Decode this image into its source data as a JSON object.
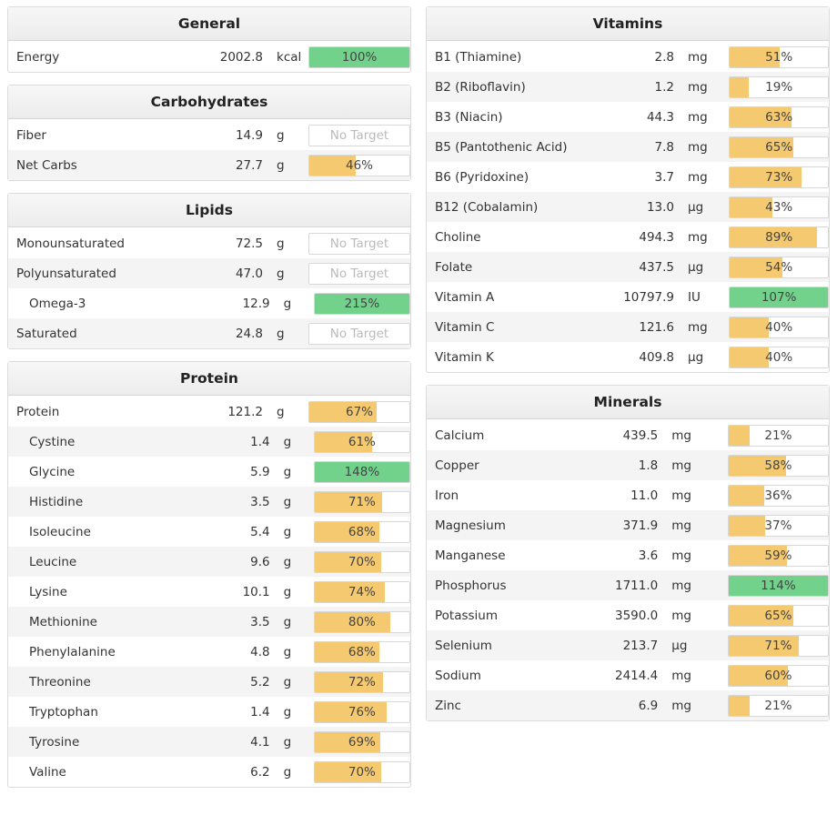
{
  "colors": {
    "yellow": "#f5c96f",
    "green": "#72d28c"
  },
  "general": {
    "title": "General",
    "rows": [
      {
        "name": "Energy",
        "amount": "2002.8",
        "unit": "kcal",
        "label": "100%",
        "pct": 100,
        "color": "green",
        "sub": false
      }
    ]
  },
  "carbohydrates": {
    "title": "Carbohydrates",
    "rows": [
      {
        "name": "Fiber",
        "amount": "14.9",
        "unit": "g",
        "label": "No Target",
        "pct": 0,
        "color": "none",
        "sub": false
      },
      {
        "name": "Net Carbs",
        "amount": "27.7",
        "unit": "g",
        "label": "46%",
        "pct": 46,
        "color": "yellow",
        "sub": false
      }
    ]
  },
  "lipids": {
    "title": "Lipids",
    "rows": [
      {
        "name": "Monounsaturated",
        "amount": "72.5",
        "unit": "g",
        "label": "No Target",
        "pct": 0,
        "color": "none",
        "sub": false
      },
      {
        "name": "Polyunsaturated",
        "amount": "47.0",
        "unit": "g",
        "label": "No Target",
        "pct": 0,
        "color": "none",
        "sub": false
      },
      {
        "name": "Omega-3",
        "amount": "12.9",
        "unit": "g",
        "label": "215%",
        "pct": 215,
        "color": "green",
        "sub": true
      },
      {
        "name": "Saturated",
        "amount": "24.8",
        "unit": "g",
        "label": "No Target",
        "pct": 0,
        "color": "none",
        "sub": false
      }
    ]
  },
  "protein": {
    "title": "Protein",
    "rows": [
      {
        "name": "Protein",
        "amount": "121.2",
        "unit": "g",
        "label": "67%",
        "pct": 67,
        "color": "yellow",
        "sub": false
      },
      {
        "name": "Cystine",
        "amount": "1.4",
        "unit": "g",
        "label": "61%",
        "pct": 61,
        "color": "yellow",
        "sub": true
      },
      {
        "name": "Glycine",
        "amount": "5.9",
        "unit": "g",
        "label": "148%",
        "pct": 148,
        "color": "green",
        "sub": true
      },
      {
        "name": "Histidine",
        "amount": "3.5",
        "unit": "g",
        "label": "71%",
        "pct": 71,
        "color": "yellow",
        "sub": true
      },
      {
        "name": "Isoleucine",
        "amount": "5.4",
        "unit": "g",
        "label": "68%",
        "pct": 68,
        "color": "yellow",
        "sub": true
      },
      {
        "name": "Leucine",
        "amount": "9.6",
        "unit": "g",
        "label": "70%",
        "pct": 70,
        "color": "yellow",
        "sub": true
      },
      {
        "name": "Lysine",
        "amount": "10.1",
        "unit": "g",
        "label": "74%",
        "pct": 74,
        "color": "yellow",
        "sub": true
      },
      {
        "name": "Methionine",
        "amount": "3.5",
        "unit": "g",
        "label": "80%",
        "pct": 80,
        "color": "yellow",
        "sub": true
      },
      {
        "name": "Phenylalanine",
        "amount": "4.8",
        "unit": "g",
        "label": "68%",
        "pct": 68,
        "color": "yellow",
        "sub": true
      },
      {
        "name": "Threonine",
        "amount": "5.2",
        "unit": "g",
        "label": "72%",
        "pct": 72,
        "color": "yellow",
        "sub": true
      },
      {
        "name": "Tryptophan",
        "amount": "1.4",
        "unit": "g",
        "label": "76%",
        "pct": 76,
        "color": "yellow",
        "sub": true
      },
      {
        "name": "Tyrosine",
        "amount": "4.1",
        "unit": "g",
        "label": "69%",
        "pct": 69,
        "color": "yellow",
        "sub": true
      },
      {
        "name": "Valine",
        "amount": "6.2",
        "unit": "g",
        "label": "70%",
        "pct": 70,
        "color": "yellow",
        "sub": true
      }
    ]
  },
  "vitamins": {
    "title": "Vitamins",
    "rows": [
      {
        "name": "B1 (Thiamine)",
        "amount": "2.8",
        "unit": "mg",
        "label": "51%",
        "pct": 51,
        "color": "yellow",
        "sub": false
      },
      {
        "name": "B2 (Riboflavin)",
        "amount": "1.2",
        "unit": "mg",
        "label": "19%",
        "pct": 19,
        "color": "yellow",
        "sub": false
      },
      {
        "name": "B3 (Niacin)",
        "amount": "44.3",
        "unit": "mg",
        "label": "63%",
        "pct": 63,
        "color": "yellow",
        "sub": false
      },
      {
        "name": "B5 (Pantothenic Acid)",
        "amount": "7.8",
        "unit": "mg",
        "label": "65%",
        "pct": 65,
        "color": "yellow",
        "sub": false
      },
      {
        "name": "B6 (Pyridoxine)",
        "amount": "3.7",
        "unit": "mg",
        "label": "73%",
        "pct": 73,
        "color": "yellow",
        "sub": false
      },
      {
        "name": "B12 (Cobalamin)",
        "amount": "13.0",
        "unit": "µg",
        "label": "43%",
        "pct": 43,
        "color": "yellow",
        "sub": false
      },
      {
        "name": "Choline",
        "amount": "494.3",
        "unit": "mg",
        "label": "89%",
        "pct": 89,
        "color": "yellow",
        "sub": false
      },
      {
        "name": "Folate",
        "amount": "437.5",
        "unit": "µg",
        "label": "54%",
        "pct": 54,
        "color": "yellow",
        "sub": false
      },
      {
        "name": "Vitamin A",
        "amount": "10797.9",
        "unit": "IU",
        "label": "107%",
        "pct": 107,
        "color": "green",
        "sub": false
      },
      {
        "name": "Vitamin C",
        "amount": "121.6",
        "unit": "mg",
        "label": "40%",
        "pct": 40,
        "color": "yellow",
        "sub": false
      },
      {
        "name": "Vitamin K",
        "amount": "409.8",
        "unit": "µg",
        "label": "40%",
        "pct": 40,
        "color": "yellow",
        "sub": false
      }
    ]
  },
  "minerals": {
    "title": "Minerals",
    "rows": [
      {
        "name": "Calcium",
        "amount": "439.5",
        "unit": "mg",
        "label": "21%",
        "pct": 21,
        "color": "yellow",
        "sub": false
      },
      {
        "name": "Copper",
        "amount": "1.8",
        "unit": "mg",
        "label": "58%",
        "pct": 58,
        "color": "yellow",
        "sub": false
      },
      {
        "name": "Iron",
        "amount": "11.0",
        "unit": "mg",
        "label": "36%",
        "pct": 36,
        "color": "yellow",
        "sub": false
      },
      {
        "name": "Magnesium",
        "amount": "371.9",
        "unit": "mg",
        "label": "37%",
        "pct": 37,
        "color": "yellow",
        "sub": false
      },
      {
        "name": "Manganese",
        "amount": "3.6",
        "unit": "mg",
        "label": "59%",
        "pct": 59,
        "color": "yellow",
        "sub": false
      },
      {
        "name": "Phosphorus",
        "amount": "1711.0",
        "unit": "mg",
        "label": "114%",
        "pct": 114,
        "color": "green",
        "sub": false
      },
      {
        "name": "Potassium",
        "amount": "3590.0",
        "unit": "mg",
        "label": "65%",
        "pct": 65,
        "color": "yellow",
        "sub": false
      },
      {
        "name": "Selenium",
        "amount": "213.7",
        "unit": "µg",
        "label": "71%",
        "pct": 71,
        "color": "yellow",
        "sub": false
      },
      {
        "name": "Sodium",
        "amount": "2414.4",
        "unit": "mg",
        "label": "60%",
        "pct": 60,
        "color": "yellow",
        "sub": false
      },
      {
        "name": "Zinc",
        "amount": "6.9",
        "unit": "mg",
        "label": "21%",
        "pct": 21,
        "color": "yellow",
        "sub": false
      }
    ]
  }
}
